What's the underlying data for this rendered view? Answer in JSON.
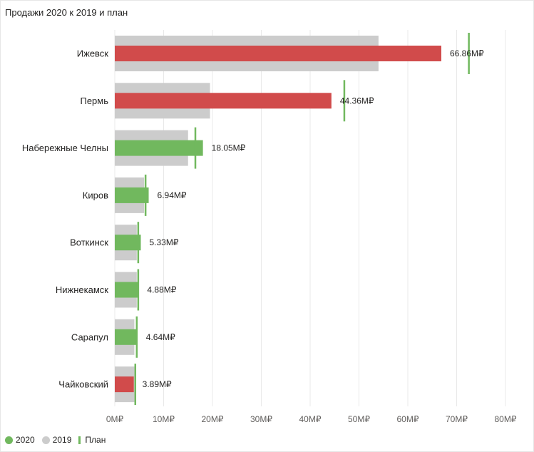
{
  "title": "Продажи 2020 к 2019 и план",
  "legend": {
    "items": [
      {
        "label": "2020",
        "marker": "dot",
        "color": "#71b85e"
      },
      {
        "label": "2019",
        "marker": "dot",
        "color": "#cccccc"
      },
      {
        "label": "План",
        "marker": "line",
        "color": "#71b85e"
      }
    ]
  },
  "colors": {
    "above_plan": "#71b85e",
    "below_plan": "#d14b4b",
    "prev_year": "#cccccc",
    "plan_marker": "#71b85e",
    "grid": "#e9e9e9"
  },
  "chart_data": {
    "type": "bar",
    "orientation": "horizontal",
    "title": "Продажи 2020 к 2019 и план",
    "categories": [
      "Ижевск",
      "Пермь",
      "Набережные Челны",
      "Киров",
      "Воткинск",
      "Нижнекамск",
      "Сарапул",
      "Чайковский"
    ],
    "series": [
      {
        "name": "2020",
        "values": [
          66.86,
          44.36,
          18.05,
          6.94,
          5.33,
          4.88,
          4.64,
          3.89
        ]
      },
      {
        "name": "2019",
        "values": [
          54.0,
          19.5,
          15.0,
          6.0,
          4.5,
          4.5,
          4.0,
          4.0
        ]
      },
      {
        "name": "План",
        "values": [
          72.5,
          47.0,
          16.5,
          6.3,
          4.8,
          4.8,
          4.5,
          4.2
        ]
      }
    ],
    "data_labels": [
      "66.86М₽",
      "44.36М₽",
      "18.05М₽",
      "6.94М₽",
      "5.33М₽",
      "4.88М₽",
      "4.64М₽",
      "3.89М₽"
    ],
    "xlim": [
      0,
      80
    ],
    "xticks": [
      0,
      10,
      20,
      30,
      40,
      50,
      60,
      70,
      80
    ],
    "xtick_labels": [
      "0М₽",
      "10М₽",
      "20М₽",
      "30М₽",
      "40М₽",
      "50М₽",
      "60М₽",
      "70М₽",
      "80М₽"
    ],
    "grid": true,
    "legend_position": "bottom-left"
  }
}
